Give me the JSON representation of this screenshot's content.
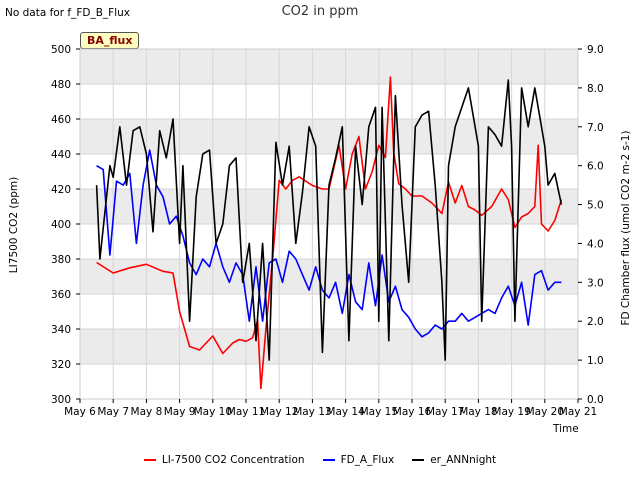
{
  "note": "No data for f_FD_B_Flux",
  "badge": "BA_flux",
  "chart_data": {
    "type": "line",
    "title": "CO2 in ppm",
    "xlabel": "Time",
    "ylabel_left": "LI7500 CO2 (ppm)",
    "ylabel_right": "FD Chamber flux (umol CO2 m-2 s-1)",
    "x_ticks": [
      "May 6",
      "May 7",
      "May 8",
      "May 9",
      "May 10",
      "May 11",
      "May 12",
      "May 13",
      "May 14",
      "May 15",
      "May 16",
      "May 17",
      "May 18",
      "May 19",
      "May 20",
      "May 21"
    ],
    "y_left_ticks": [
      "300",
      "320",
      "340",
      "360",
      "380",
      "400",
      "420",
      "440",
      "460",
      "480",
      "500"
    ],
    "y_right_ticks": [
      "0.0",
      "1.0",
      "2.0",
      "3.0",
      "4.0",
      "5.0",
      "6.0",
      "7.0",
      "8.0",
      "9.0"
    ],
    "ylim_left": [
      300,
      500
    ],
    "ylim_right": [
      0,
      9
    ],
    "xlim": [
      6,
      21
    ],
    "grid": true,
    "legend_position": "bottom",
    "series": [
      {
        "name": "LI-7500 CO2 Concentration",
        "axis": "left",
        "color": "#ff0000",
        "x": [
          6.5,
          7.0,
          7.5,
          8.0,
          8.5,
          8.8,
          9.0,
          9.3,
          9.6,
          10.0,
          10.3,
          10.6,
          10.8,
          11.0,
          11.2,
          11.35,
          11.45,
          11.6,
          11.8,
          12.0,
          12.2,
          12.4,
          12.6,
          13.0,
          13.3,
          13.5,
          13.8,
          14.0,
          14.2,
          14.4,
          14.6,
          14.8,
          15.0,
          15.2,
          15.35,
          15.45,
          15.6,
          15.8,
          16.0,
          16.3,
          16.6,
          16.9,
          17.1,
          17.3,
          17.5,
          17.7,
          17.9,
          18.1,
          18.4,
          18.7,
          18.9,
          19.1,
          19.3,
          19.5,
          19.7,
          19.8,
          19.9,
          20.1,
          20.3,
          20.5
        ],
        "y": [
          378,
          372,
          375,
          377,
          373,
          372,
          350,
          330,
          328,
          336,
          326,
          332,
          334,
          333,
          335,
          345,
          306,
          340,
          380,
          425,
          420,
          425,
          427,
          422,
          420,
          420,
          445,
          420,
          440,
          450,
          420,
          430,
          445,
          438,
          484,
          441,
          423,
          420,
          416,
          416,
          412,
          406,
          424,
          412,
          422,
          410,
          408,
          405,
          410,
          420,
          414,
          398,
          404,
          406,
          410,
          445,
          400,
          396,
          402,
          414
        ]
      },
      {
        "name": "FD_A_Flux",
        "axis": "right",
        "color": "#0000ff",
        "x": [
          6.5,
          6.7,
          6.9,
          7.1,
          7.3,
          7.5,
          7.7,
          7.9,
          8.1,
          8.3,
          8.5,
          8.7,
          8.9,
          9.1,
          9.3,
          9.5,
          9.7,
          9.9,
          10.1,
          10.3,
          10.5,
          10.7,
          10.9,
          11.1,
          11.3,
          11.5,
          11.7,
          11.9,
          12.1,
          12.3,
          12.5,
          12.7,
          12.9,
          13.1,
          13.3,
          13.5,
          13.7,
          13.9,
          14.1,
          14.3,
          14.5,
          14.7,
          14.9,
          15.1,
          15.3,
          15.5,
          15.7,
          15.9,
          16.1,
          16.3,
          16.5,
          16.7,
          16.9,
          17.1,
          17.3,
          17.5,
          17.7,
          17.9,
          18.1,
          18.3,
          18.5,
          18.7,
          18.9,
          19.1,
          19.3,
          19.5,
          19.7,
          19.9,
          20.1,
          20.3,
          20.5
        ],
        "y": [
          6.0,
          5.9,
          3.7,
          5.6,
          5.5,
          5.8,
          4.0,
          5.5,
          6.4,
          5.5,
          5.2,
          4.5,
          4.7,
          4.2,
          3.5,
          3.2,
          3.6,
          3.4,
          4.0,
          3.4,
          3.0,
          3.5,
          3.2,
          2.0,
          3.4,
          2.0,
          3.5,
          3.6,
          3.0,
          3.8,
          3.6,
          3.2,
          2.8,
          3.4,
          2.8,
          2.6,
          3.0,
          2.2,
          3.2,
          2.5,
          2.3,
          3.5,
          2.4,
          3.7,
          2.5,
          2.9,
          2.3,
          2.1,
          1.8,
          1.6,
          1.7,
          1.9,
          1.8,
          2.0,
          2.0,
          2.2,
          2.0,
          2.1,
          2.2,
          2.3,
          2.2,
          2.6,
          2.9,
          2.4,
          3.0,
          1.9,
          3.2,
          3.3,
          2.8,
          3.0,
          3.0
        ]
      },
      {
        "name": "er_ANNnight",
        "axis": "right",
        "color": "#000000",
        "x": [
          6.5,
          6.6,
          6.75,
          6.9,
          7.0,
          7.2,
          7.4,
          7.6,
          7.8,
          8.0,
          8.2,
          8.4,
          8.6,
          8.8,
          9.0,
          9.1,
          9.3,
          9.5,
          9.7,
          9.9,
          10.1,
          10.3,
          10.5,
          10.7,
          10.9,
          11.1,
          11.3,
          11.5,
          11.7,
          11.9,
          12.1,
          12.3,
          12.5,
          12.7,
          12.9,
          13.1,
          13.3,
          13.5,
          13.7,
          13.9,
          14.1,
          14.3,
          14.5,
          14.7,
          14.9,
          15.0,
          15.1,
          15.3,
          15.5,
          15.7,
          15.9,
          16.1,
          16.3,
          16.5,
          16.7,
          16.9,
          17.0,
          17.1,
          17.3,
          17.5,
          17.7,
          17.9,
          18.0,
          18.1,
          18.3,
          18.5,
          18.7,
          18.9,
          19.0,
          19.1,
          19.3,
          19.5,
          19.7,
          19.9,
          20.0,
          20.1,
          20.3,
          20.5
        ],
        "y": [
          5.5,
          3.6,
          4.8,
          6.0,
          5.7,
          7.0,
          5.5,
          6.9,
          7.0,
          6.3,
          4.3,
          6.9,
          6.2,
          7.2,
          4.0,
          6.0,
          2.0,
          5.2,
          6.3,
          6.4,
          4.0,
          4.5,
          6.0,
          6.2,
          3.0,
          4.0,
          1.5,
          4.0,
          1.0,
          6.6,
          5.5,
          6.5,
          4.0,
          5.3,
          7.0,
          6.5,
          1.2,
          5.5,
          6.2,
          7.0,
          1.5,
          6.5,
          5.0,
          7.0,
          7.5,
          2.0,
          7.5,
          1.5,
          7.8,
          5.0,
          3.0,
          7.0,
          7.3,
          7.4,
          5.5,
          3.0,
          1.0,
          6.0,
          7.0,
          7.5,
          8.0,
          7.0,
          6.5,
          2.0,
          7.0,
          6.8,
          6.5,
          8.2,
          6.5,
          2.0,
          8.0,
          7.0,
          8.0,
          7.0,
          6.5,
          5.5,
          5.8,
          5.0
        ]
      }
    ]
  }
}
